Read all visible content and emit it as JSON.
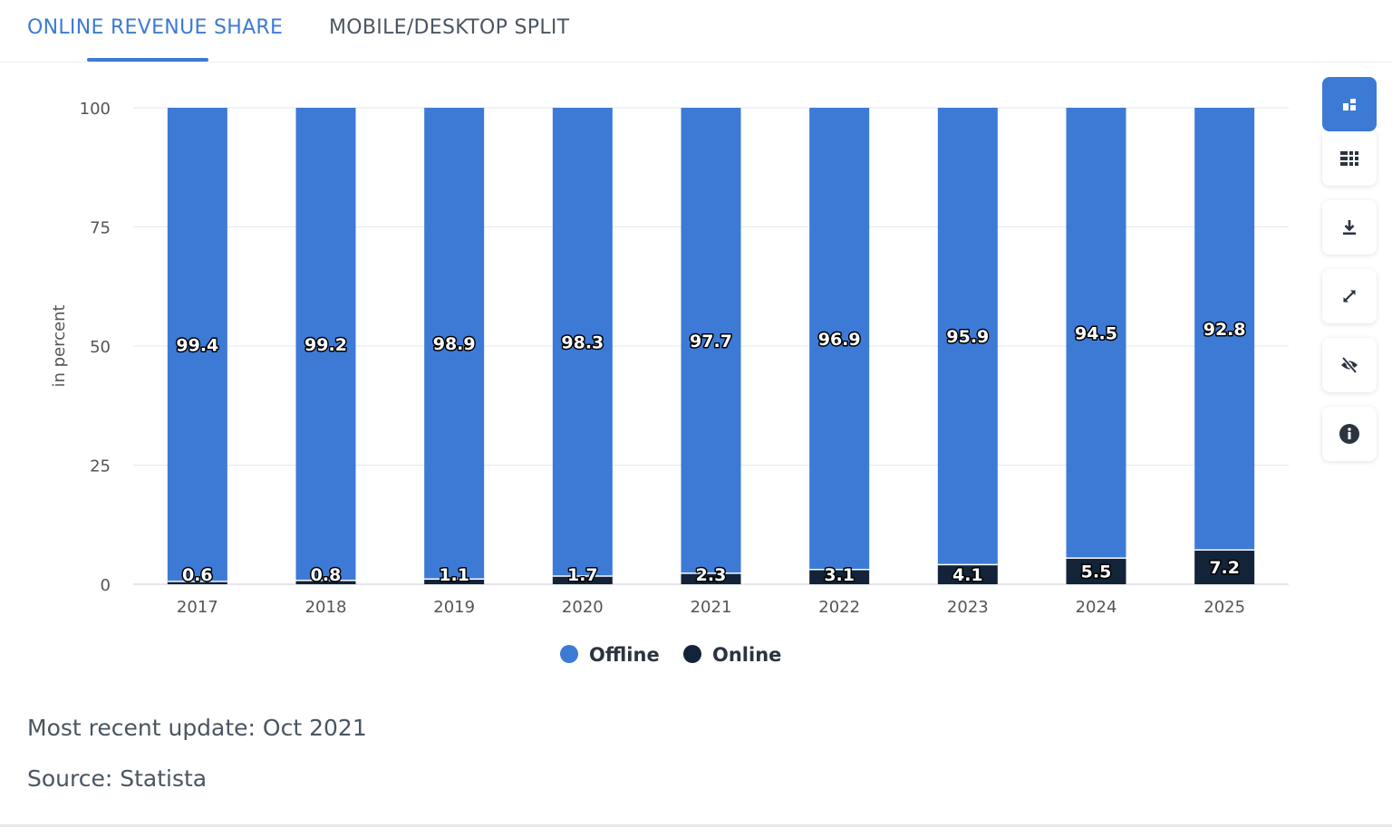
{
  "tabs": [
    {
      "label": "ONLINE REVENUE SHARE",
      "active": true
    },
    {
      "label": "MOBILE/DESKTOP SPLIT",
      "active": false
    }
  ],
  "toolbar": {
    "icons": [
      "chart-type-icon",
      "table-icon",
      "download-icon",
      "expand-icon",
      "hide-icon",
      "info-icon"
    ]
  },
  "footer": {
    "update": "Most recent update: Oct 2021",
    "source": "Source: Statista"
  },
  "colors": {
    "accent": "#3d7ad6",
    "offline": "#3d7ad6",
    "online": "#132338"
  },
  "chart_data": {
    "type": "bar",
    "stacked": true,
    "categories": [
      "2017",
      "2018",
      "2019",
      "2020",
      "2021",
      "2022",
      "2023",
      "2024",
      "2025"
    ],
    "series": [
      {
        "name": "Offline",
        "color": "#3d7ad6",
        "values": [
          99.4,
          99.2,
          98.9,
          98.3,
          97.7,
          96.9,
          95.9,
          94.5,
          92.8
        ]
      },
      {
        "name": "Online",
        "color": "#132338",
        "values": [
          0.6,
          0.8,
          1.1,
          1.7,
          2.3,
          3.1,
          4.1,
          5.5,
          7.2
        ]
      }
    ],
    "ylabel": "in percent",
    "ylim": [
      0,
      100
    ],
    "yticks": [
      0,
      25,
      50,
      75,
      100
    ],
    "grid": true,
    "legend": "bottom-center"
  }
}
